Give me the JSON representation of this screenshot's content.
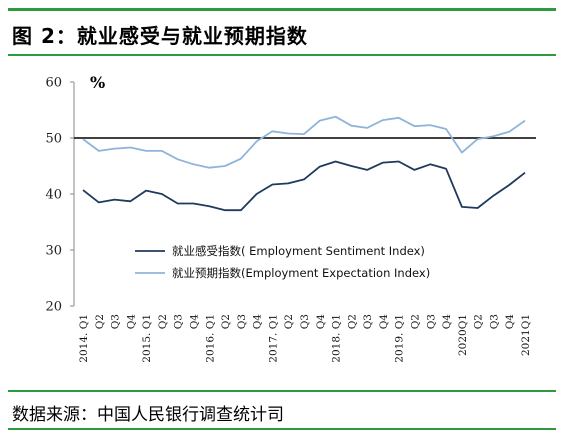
{
  "figure": {
    "title": "图 2：就业感受与就业预期指数",
    "source": "数据来源：中国人民银行调查统计司",
    "rule_color": "#2e9a3f"
  },
  "chart_data": {
    "type": "line",
    "unit_label": "%",
    "ylim": [
      20,
      60
    ],
    "yticks": [
      20,
      30,
      40,
      50,
      60
    ],
    "reference_line": 50,
    "grid": false,
    "legend_position": "lower-middle",
    "x": [
      "2014. Q1",
      "Q2",
      "Q3",
      "Q4",
      "2015. Q1",
      "Q2",
      "Q3",
      "Q4",
      "2016. Q1",
      "Q2",
      "Q3",
      "Q4",
      "2017. Q1",
      "Q2",
      "Q3",
      "Q4",
      "2018. Q1",
      "Q2",
      "Q3",
      "Q4",
      "2019. Q1",
      "Q2",
      "Q3",
      "Q4",
      "2020Q1",
      "Q2",
      "Q3",
      "Q4",
      "2021Q1"
    ],
    "series": [
      {
        "name": "就业感受指数( Employment Sentiment Index)",
        "color": "#1f3a5c",
        "values": [
          40.7,
          38.5,
          39.0,
          38.7,
          40.6,
          40.0,
          38.3,
          38.3,
          37.8,
          37.1,
          37.1,
          40.0,
          41.7,
          41.9,
          42.6,
          44.9,
          45.8,
          45.0,
          44.3,
          45.6,
          45.8,
          44.3,
          45.3,
          44.5,
          37.7,
          37.5,
          39.7,
          41.6,
          43.8
        ]
      },
      {
        "name": "就业预期指数(Employment Expectation Index)",
        "color": "#8fb4da",
        "values": [
          49.8,
          47.7,
          48.1,
          48.3,
          47.7,
          47.7,
          46.2,
          45.3,
          44.7,
          45.0,
          46.3,
          49.4,
          51.2,
          50.8,
          50.7,
          53.1,
          53.8,
          52.2,
          51.8,
          53.2,
          53.6,
          52.1,
          52.3,
          51.6,
          47.4,
          49.8,
          50.3,
          51.1,
          53.1
        ]
      }
    ]
  }
}
